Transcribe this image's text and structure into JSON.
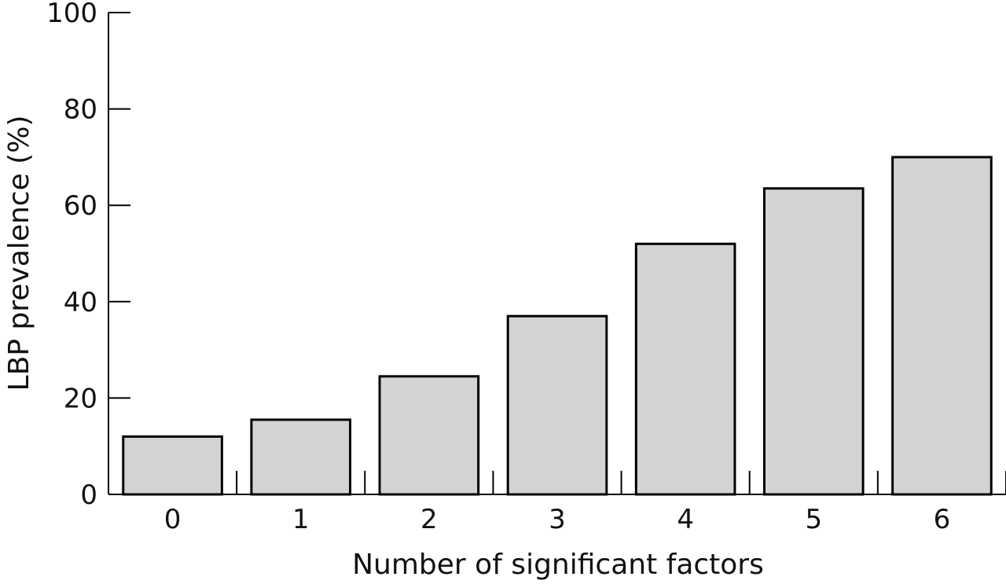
{
  "chart_data": {
    "type": "bar",
    "categories": [
      "0",
      "1",
      "2",
      "3",
      "4",
      "5",
      "6"
    ],
    "values": [
      12,
      15.5,
      24.5,
      37,
      52,
      63.5,
      70
    ],
    "title": "",
    "xlabel": "Number of significant factors",
    "ylabel": "LBP prevalence (%)",
    "ylim": [
      0,
      100
    ],
    "yticks": [
      "0",
      "20",
      "40",
      "60",
      "80",
      "100"
    ],
    "grid": false,
    "bar_color": "#d3d3d3",
    "edge_color": "#000000"
  }
}
